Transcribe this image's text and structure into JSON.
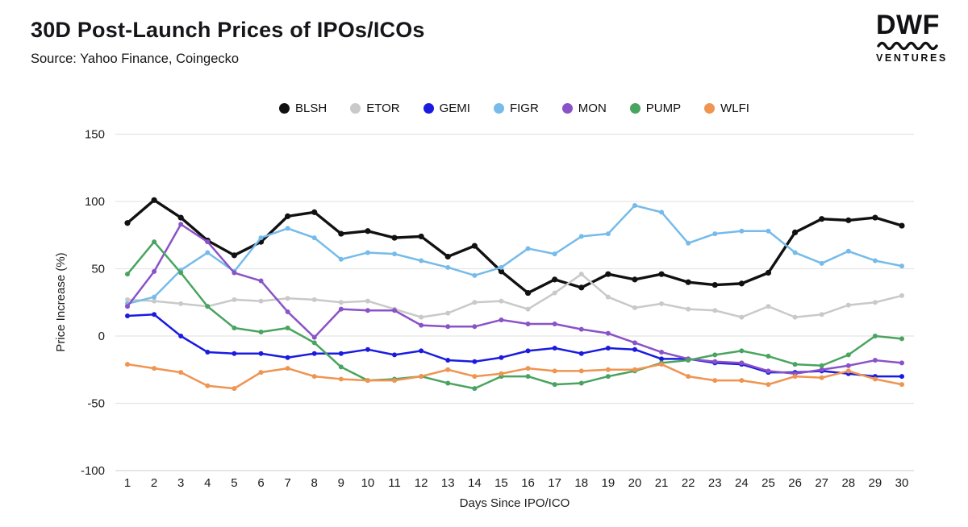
{
  "header": {
    "title": "30D Post-Launch Prices of IPOs/ICOs",
    "source": "Source: Yahoo Finance, Coingecko",
    "logo": {
      "brand": "DWF",
      "sub": "VENTURES"
    }
  },
  "chart_data": {
    "type": "line",
    "title": "30D Post-Launch Prices of IPOs/ICOs",
    "xlabel": "Days Since IPO/ICO",
    "ylabel": "Price Increase (%)",
    "x": [
      1,
      2,
      3,
      4,
      5,
      6,
      7,
      8,
      9,
      10,
      11,
      12,
      13,
      14,
      15,
      16,
      17,
      18,
      19,
      20,
      21,
      22,
      23,
      24,
      25,
      26,
      27,
      28,
      29,
      30
    ],
    "y_ticks": [
      150,
      100,
      50,
      0,
      -50,
      -100
    ],
    "ylim": [
      -100,
      150
    ],
    "grid": true,
    "legend_position": "top",
    "series": [
      {
        "name": "BLSH",
        "color": "#111111",
        "values": [
          84,
          101,
          88,
          71,
          60,
          70,
          89,
          92,
          76,
          78,
          73,
          74,
          59,
          67,
          48,
          32,
          42,
          36,
          46,
          42,
          46,
          40,
          38,
          39,
          47,
          77,
          87,
          86,
          88,
          82
        ]
      },
      {
        "name": "ETOR",
        "color": "#c9c9c9",
        "values": [
          27,
          26,
          24,
          22,
          27,
          26,
          28,
          27,
          25,
          26,
          20,
          14,
          17,
          25,
          26,
          20,
          32,
          46,
          29,
          21,
          24,
          20,
          19,
          14,
          22,
          14,
          16,
          23,
          25,
          30
        ]
      },
      {
        "name": "GEMI",
        "color": "#1b1be0",
        "values": [
          15,
          16,
          0,
          -12,
          -13,
          -13,
          -16,
          -13,
          -13,
          -10,
          -14,
          -11,
          -18,
          -19,
          -16,
          -11,
          -9,
          -13,
          -9,
          -10,
          -17,
          -17,
          -20,
          -21,
          -27,
          -27,
          -26,
          -28,
          -30,
          -30
        ]
      },
      {
        "name": "FIGR",
        "color": "#76bbe9",
        "values": [
          24,
          29,
          49,
          62,
          48,
          73,
          80,
          73,
          57,
          62,
          61,
          56,
          51,
          45,
          51,
          65,
          61,
          74,
          76,
          97,
          92,
          69,
          76,
          78,
          78,
          62,
          54,
          63,
          56,
          52
        ]
      },
      {
        "name": "MON",
        "color": "#8a52c7",
        "values": [
          22,
          48,
          83,
          70,
          47,
          41,
          18,
          -1,
          20,
          19,
          19,
          8,
          7,
          7,
          12,
          9,
          9,
          5,
          2,
          -5,
          -12,
          -17,
          -19,
          -20,
          -26,
          -28,
          -25,
          -22,
          -18,
          -20
        ]
      },
      {
        "name": "PUMP",
        "color": "#49a45f",
        "values": [
          46,
          70,
          47,
          22,
          6,
          3,
          6,
          -5,
          -23,
          -33,
          -32,
          -30,
          -35,
          -39,
          -30,
          -30,
          -36,
          -35,
          -30,
          -26,
          -20,
          -18,
          -14,
          -11,
          -15,
          -21,
          -22,
          -14,
          0,
          -2
        ]
      },
      {
        "name": "WLFI",
        "color": "#ef9451",
        "values": [
          -21,
          -24,
          -27,
          -37,
          -39,
          -27,
          -24,
          -30,
          -32,
          -33,
          -33,
          -30,
          -25,
          -30,
          -28,
          -24,
          -26,
          -26,
          -25,
          -25,
          -21,
          -30,
          -33,
          -33,
          -36,
          -30,
          -31,
          -26,
          -32,
          -36
        ]
      }
    ]
  }
}
